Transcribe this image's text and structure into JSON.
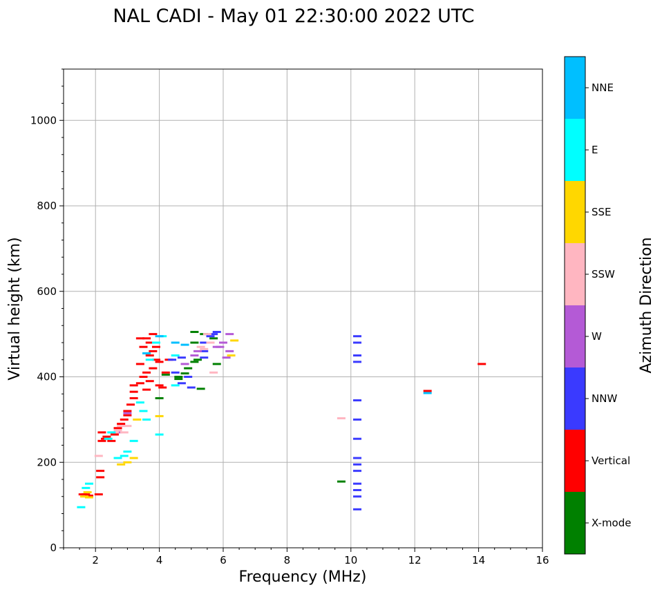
{
  "chart_data": {
    "type": "scatter",
    "title": "NAL CADI - May 01 22:30:00 2022 UTC",
    "xlabel": "Frequency (MHz)",
    "ylabel": "Virtual height (km)",
    "xlim": [
      1,
      16
    ],
    "ylim": [
      0,
      1120
    ],
    "xticks": [
      2,
      4,
      6,
      8,
      10,
      12,
      14,
      16
    ],
    "yticks": [
      0,
      200,
      400,
      600,
      800,
      1000
    ],
    "grid": true,
    "colorbar": {
      "label": "Azimuth Direction",
      "categories": [
        "X-mode",
        "Vertical",
        "NNW",
        "W",
        "SSW",
        "SSE",
        "E",
        "NNE"
      ],
      "colors": [
        "#008000",
        "#ff0000",
        "#3a3aff",
        "#b45ad6",
        "#ffb6c1",
        "#ffd700",
        "#00ffff",
        "#00bfff"
      ]
    },
    "series": [
      {
        "name": "X-mode",
        "color": "#008000",
        "points": [
          [
            9.7,
            155
          ],
          [
            4.0,
            350
          ],
          [
            4.6,
            400
          ],
          [
            4.6,
            395
          ],
          [
            4.9,
            420
          ],
          [
            5.1,
            435
          ],
          [
            5.2,
            440
          ],
          [
            5.1,
            480
          ],
          [
            5.4,
            500
          ],
          [
            5.1,
            505
          ],
          [
            5.7,
            490
          ],
          [
            5.8,
            430
          ],
          [
            5.3,
            372
          ],
          [
            4.2,
            405
          ],
          [
            4.8,
            408
          ]
        ]
      },
      {
        "name": "Vertical",
        "color": "#ff0000",
        "points": [
          [
            14.1,
            430
          ],
          [
            12.4,
            367
          ],
          [
            1.6,
            125
          ],
          [
            1.7,
            125
          ],
          [
            1.8,
            122
          ],
          [
            2.1,
            125
          ],
          [
            2.15,
            180
          ],
          [
            2.15,
            165
          ],
          [
            2.2,
            250
          ],
          [
            2.3,
            255
          ],
          [
            2.35,
            260
          ],
          [
            2.5,
            250
          ],
          [
            2.6,
            265
          ],
          [
            2.2,
            270
          ],
          [
            2.7,
            280
          ],
          [
            2.8,
            290
          ],
          [
            2.9,
            300
          ],
          [
            3.0,
            310
          ],
          [
            3.0,
            320
          ],
          [
            3.1,
            335
          ],
          [
            3.2,
            350
          ],
          [
            3.2,
            365
          ],
          [
            3.2,
            380
          ],
          [
            3.4,
            385
          ],
          [
            3.5,
            400
          ],
          [
            3.6,
            410
          ],
          [
            3.4,
            430
          ],
          [
            3.7,
            390
          ],
          [
            3.6,
            370
          ],
          [
            3.8,
            420
          ],
          [
            3.9,
            440
          ],
          [
            3.8,
            460
          ],
          [
            3.7,
            480
          ],
          [
            3.6,
            490
          ],
          [
            3.8,
            500
          ],
          [
            3.9,
            470
          ],
          [
            4.0,
            380
          ],
          [
            4.1,
            375
          ],
          [
            4.0,
            435
          ],
          [
            4.2,
            410
          ],
          [
            4.3,
            440
          ],
          [
            3.4,
            490
          ],
          [
            3.5,
            470
          ],
          [
            3.7,
            450
          ]
        ]
      },
      {
        "name": "NNW",
        "color": "#3a3aff",
        "points": [
          [
            10.2,
            90
          ],
          [
            10.2,
            120
          ],
          [
            10.2,
            135
          ],
          [
            10.2,
            150
          ],
          [
            10.2,
            180
          ],
          [
            10.2,
            195
          ],
          [
            10.2,
            210
          ],
          [
            10.2,
            255
          ],
          [
            10.2,
            300
          ],
          [
            10.2,
            345
          ],
          [
            10.2,
            435
          ],
          [
            10.2,
            450
          ],
          [
            10.2,
            480
          ],
          [
            10.2,
            495
          ],
          [
            4.7,
            385
          ],
          [
            5.0,
            375
          ],
          [
            5.4,
            445
          ],
          [
            5.4,
            460
          ],
          [
            5.4,
            480
          ],
          [
            5.6,
            495
          ],
          [
            5.7,
            500
          ],
          [
            5.8,
            505
          ],
          [
            4.9,
            400
          ],
          [
            4.5,
            410
          ],
          [
            4.4,
            440
          ],
          [
            4.7,
            445
          ]
        ]
      },
      {
        "name": "W",
        "color": "#b45ad6",
        "points": [
          [
            5.2,
            460
          ],
          [
            5.8,
            470
          ],
          [
            6.1,
            445
          ],
          [
            6.2,
            460
          ],
          [
            6.0,
            480
          ],
          [
            6.2,
            500
          ],
          [
            5.9,
            470
          ],
          [
            4.8,
            430
          ],
          [
            2.7,
            270
          ],
          [
            3.0,
            315
          ],
          [
            5.1,
            450
          ]
        ]
      },
      {
        "name": "SSW",
        "color": "#ffb6c1",
        "points": [
          [
            9.7,
            303
          ],
          [
            2.1,
            215
          ],
          [
            2.6,
            270
          ],
          [
            2.7,
            275
          ],
          [
            2.8,
            285
          ],
          [
            5.4,
            465
          ],
          [
            5.6,
            480
          ],
          [
            5.7,
            410
          ],
          [
            5.3,
            470
          ],
          [
            5.5,
            500
          ],
          [
            3.0,
            285
          ],
          [
            2.9,
            270
          ]
        ]
      },
      {
        "name": "SSE",
        "color": "#ffd700",
        "points": [
          [
            1.8,
            118
          ],
          [
            1.75,
            130
          ],
          [
            3.0,
            200
          ],
          [
            3.2,
            210
          ],
          [
            2.8,
            195
          ],
          [
            6.35,
            485
          ],
          [
            6.25,
            450
          ],
          [
            3.3,
            300
          ],
          [
            4.0,
            308
          ],
          [
            1.65,
            120
          ]
        ]
      },
      {
        "name": "E",
        "color": "#00ffff",
        "points": [
          [
            1.7,
            140
          ],
          [
            1.55,
            95
          ],
          [
            1.8,
            150
          ],
          [
            2.4,
            255
          ],
          [
            2.5,
            270
          ],
          [
            2.9,
            215
          ],
          [
            3.0,
            225
          ],
          [
            3.2,
            250
          ],
          [
            3.6,
            300
          ],
          [
            3.5,
            320
          ],
          [
            3.7,
            440
          ],
          [
            3.6,
            455
          ],
          [
            4.0,
            265
          ],
          [
            4.5,
            450
          ],
          [
            4.5,
            380
          ],
          [
            3.9,
            480
          ],
          [
            4.1,
            495
          ],
          [
            2.7,
            210
          ],
          [
            3.4,
            340
          ]
        ]
      },
      {
        "name": "NNE",
        "color": "#00bfff",
        "points": [
          [
            4.5,
            480
          ],
          [
            4.8,
            475
          ],
          [
            12.4,
            362
          ],
          [
            4.0,
            495
          ],
          [
            3.6,
            455
          ]
        ]
      }
    ]
  }
}
